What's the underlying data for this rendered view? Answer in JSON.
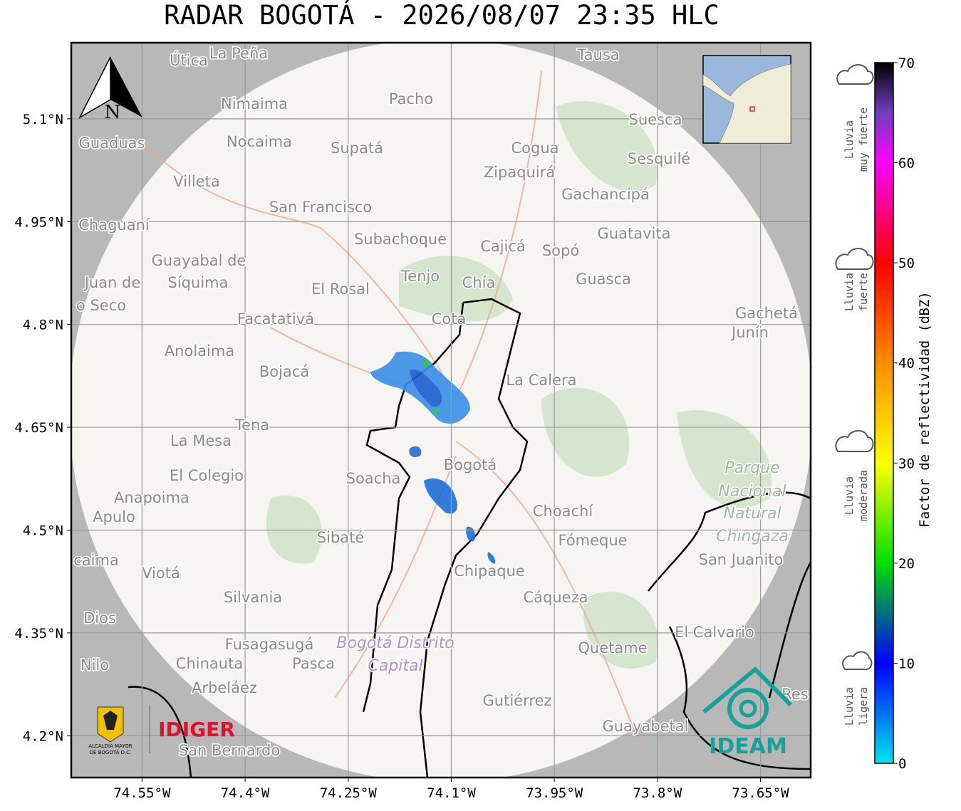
{
  "title": "RADAR BOGOTÁ - 2026/08/07 23:35 HLC",
  "map": {
    "xlim": [
      -74.653,
      -73.577
    ],
    "ylim": [
      4.139,
      5.211
    ],
    "xticks": [
      {
        "value": -74.55,
        "label": "74.55°W"
      },
      {
        "value": -74.4,
        "label": "74.4°W"
      },
      {
        "value": -74.25,
        "label": "74.25°W"
      },
      {
        "value": -74.1,
        "label": "74.1°W"
      },
      {
        "value": -73.95,
        "label": "73.95°W"
      },
      {
        "value": -73.8,
        "label": "73.8°W"
      },
      {
        "value": -73.65,
        "label": "73.65°W"
      }
    ],
    "yticks": [
      {
        "value": 5.1,
        "label": "5.1°N"
      },
      {
        "value": 4.95,
        "label": "4.95°N"
      },
      {
        "value": 4.8,
        "label": "4.8°N"
      },
      {
        "value": 4.65,
        "label": "4.65°N"
      },
      {
        "value": 4.5,
        "label": "4.5°N"
      },
      {
        "value": 4.35,
        "label": "4.35°N"
      },
      {
        "value": 4.2,
        "label": "4.2°N"
      }
    ],
    "north": "N",
    "places": [
      "Útica",
      "La Peña",
      "Tausa",
      "Pacho",
      "Nimaima",
      "Guaduas",
      "Nocaima",
      "Supatá",
      "Cogua",
      "Suesca",
      "Sesquilé",
      "Zipaquirá",
      "Villeta",
      "Gachancipá",
      "San Francisco",
      "Chaguaní",
      "Guatavita",
      "Subachoque",
      "Cajicá",
      "Sopó",
      "Guayabal de",
      "Síquima",
      "Juan de",
      "o Seco",
      "Tenjo",
      "Chía",
      "Guasca",
      "El Rosal",
      "Facatativá",
      "Cota",
      "Gachetá",
      "Junín",
      "Anolaima",
      "Bojacá",
      "La Calera",
      "Tena",
      "La Mesa",
      "Bogotá",
      "Soacha",
      "El Colegio",
      "Anapoima",
      "Apulo",
      "Choachí",
      "Sibaté",
      "Fómeque",
      "San Juanito",
      "caima",
      "Viotá",
      "Chipaque",
      "Silvania",
      "Cáqueza",
      "Dios",
      "El Calvario",
      "Fusagasugá",
      "Quetame",
      "Nilo",
      "Chinauta",
      "Pasca",
      "Arbeláez",
      "Gutiérrez",
      "Guayabetal",
      "San Bernardo",
      "Res"
    ],
    "district": [
      "Bogotá Distrito",
      "Capital"
    ],
    "park": [
      "Parque",
      "Nacional",
      "Natural",
      "Chingaza"
    ]
  },
  "colorbar": {
    "label": "Factor de reflectividad (dBZ)",
    "lim": [
      0,
      70
    ],
    "ticks": [
      0,
      10,
      20,
      30,
      40,
      50,
      60,
      70
    ],
    "stops": [
      [
        0,
        "#00e5ee"
      ],
      [
        10,
        "#0000ff"
      ],
      [
        20,
        "#00e000"
      ],
      [
        30,
        "#ffff00"
      ],
      [
        40,
        "#ff8c00"
      ],
      [
        50,
        "#ff0000"
      ],
      [
        60,
        "#ff00ff"
      ],
      [
        65,
        "#7040c0"
      ],
      [
        70,
        "#000000"
      ]
    ]
  },
  "legend": [
    {
      "lines": [
        "Lluvia",
        "muy fuerte"
      ]
    },
    {
      "lines": [
        "Lluvia",
        "fuerte"
      ]
    },
    {
      "lines": [
        "Lluvia",
        "moderada"
      ]
    },
    {
      "lines": [
        "Lluvia",
        "ligera"
      ]
    }
  ],
  "logos": {
    "alcaldia": [
      "ALCALDÍA MAYOR",
      "DE BOGOTÁ D.C."
    ],
    "idiger": "IDIGER",
    "ideam": "IDEAM"
  }
}
